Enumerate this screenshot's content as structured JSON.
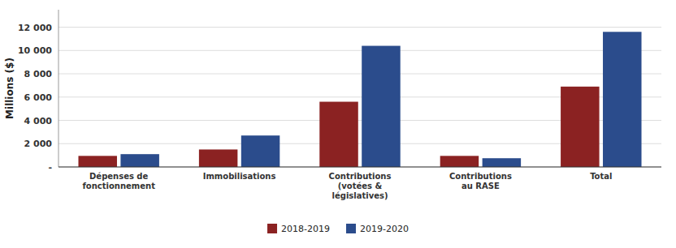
{
  "chart_data": {
    "type": "bar",
    "categories": [
      "Dépenses de\nfonctionnement",
      "Immobilisations",
      "Contributions\n(votées &\nlégislatives)",
      "Contributions\nau RASE",
      "Total"
    ],
    "series": [
      {
        "name": "2018-2019",
        "color": "#8B2222",
        "values": [
          950,
          1500,
          5600,
          950,
          6900
        ]
      },
      {
        "name": "2019-2020",
        "color": "#2B4C8C",
        "values": [
          1100,
          2700,
          10400,
          750,
          11600
        ]
      }
    ],
    "ylabel": "Millions ($)",
    "ylim": [
      0,
      13500
    ],
    "yticks": [
      {
        "value": 0,
        "label": "-"
      },
      {
        "value": 2000,
        "label": "2 000"
      },
      {
        "value": 4000,
        "label": "4 000"
      },
      {
        "value": 6000,
        "label": "6 000"
      },
      {
        "value": 8000,
        "label": "8 000"
      },
      {
        "value": 10000,
        "label": "10 000"
      },
      {
        "value": 12000,
        "label": "12 000"
      }
    ],
    "grid": true,
    "legend": "bottom"
  }
}
